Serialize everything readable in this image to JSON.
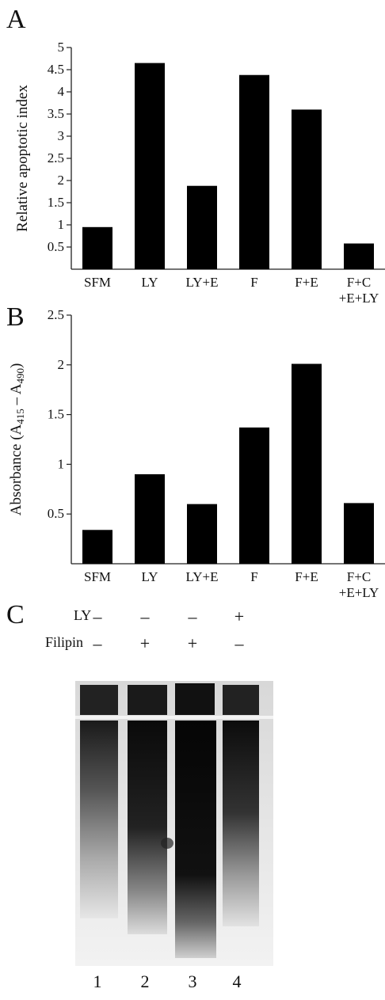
{
  "panels": {
    "a": "A",
    "b": "B",
    "c": "C"
  },
  "chart_data": [
    {
      "type": "bar",
      "title": "",
      "xlabel": "",
      "ylabel": "Relative apoptotic index",
      "categories": [
        "SFM",
        "LY",
        "LY+E",
        "F",
        "F+E",
        "F+C\n+E+LY"
      ],
      "values": [
        0.95,
        4.65,
        1.88,
        4.38,
        3.6,
        0.58
      ],
      "ylim": [
        0,
        5
      ],
      "yticks": [
        0.5,
        1,
        1.5,
        2,
        2.5,
        3,
        3.5,
        4,
        4.5,
        5
      ],
      "grid": false,
      "bar_color": "#000000"
    },
    {
      "type": "bar",
      "title": "",
      "xlabel": "",
      "ylabel": "Absorbance (A415 – A490)",
      "ylabel_parts": {
        "main": "Absorbance (A",
        "sub1": "415",
        "mid": " – A",
        "sub2": "490",
        "end": ")"
      },
      "categories": [
        "SFM",
        "LY",
        "LY+E",
        "F",
        "F+E",
        "F+C\n+E+LY"
      ],
      "values": [
        0.34,
        0.9,
        0.6,
        1.37,
        2.01,
        0.61
      ],
      "ylim": [
        0,
        2.5
      ],
      "yticks": [
        0.5,
        1,
        1.5,
        2,
        2.5
      ],
      "grid": false,
      "bar_color": "#000000"
    }
  ],
  "gel": {
    "row_labels": {
      "ly": "LY",
      "filipin": "Filipin"
    },
    "ly_signs": [
      "–",
      "–",
      "–",
      "+"
    ],
    "filipin_signs": [
      "–",
      "+",
      "+",
      "–"
    ],
    "lanes": [
      "1",
      "2",
      "3",
      "4"
    ]
  }
}
